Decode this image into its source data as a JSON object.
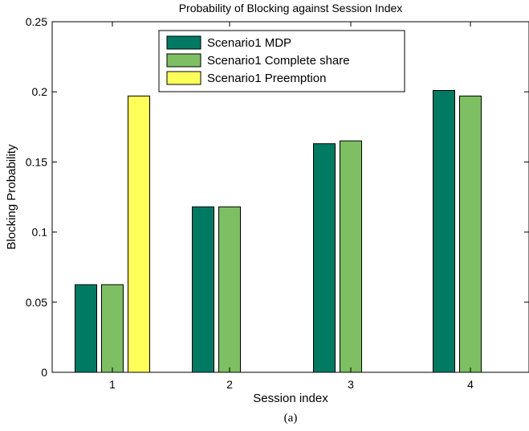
{
  "chart_data": {
    "type": "bar",
    "title": "Probability of Blocking against Session Index",
    "xlabel": "Session index",
    "ylabel": "Blocking Probability",
    "caption": "(a)",
    "categories": [
      "1",
      "2",
      "3",
      "4"
    ],
    "ylim": [
      0,
      0.25
    ],
    "yticks": [
      "0",
      "0.05",
      "0.1",
      "0.15",
      "0.2",
      "0.25"
    ],
    "legend_position": "top-center",
    "grid": false,
    "series": [
      {
        "name": "Scenario1 MDP",
        "color": "#007a62",
        "values": [
          0.0625,
          0.118,
          0.163,
          0.201
        ]
      },
      {
        "name": "Scenario1 Complete share",
        "color": "#7dbf62",
        "values": [
          0.0625,
          0.118,
          0.165,
          0.197
        ]
      },
      {
        "name": "Scenario1 Preemption",
        "color": "#ffff5a",
        "values": [
          0.197,
          null,
          null,
          null
        ]
      }
    ]
  }
}
